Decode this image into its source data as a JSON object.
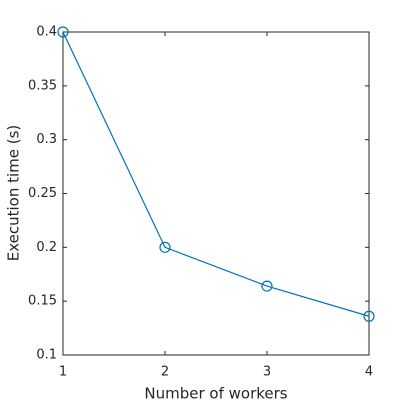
{
  "chart_data": {
    "type": "line",
    "x": [
      1,
      2,
      3,
      4
    ],
    "values": [
      0.4,
      0.2,
      0.164,
      0.136
    ],
    "color": "#0072bd",
    "marker": "circle",
    "xlabel": "Number of workers",
    "ylabel": "Execution time (s)",
    "xlim": [
      1,
      4
    ],
    "xticks": [
      1,
      2,
      3,
      4
    ],
    "ylim": [
      0.1,
      0.4
    ],
    "yticks": [
      0.1,
      0.15,
      0.2,
      0.25,
      0.3,
      0.35,
      0.4
    ],
    "grid": false
  }
}
